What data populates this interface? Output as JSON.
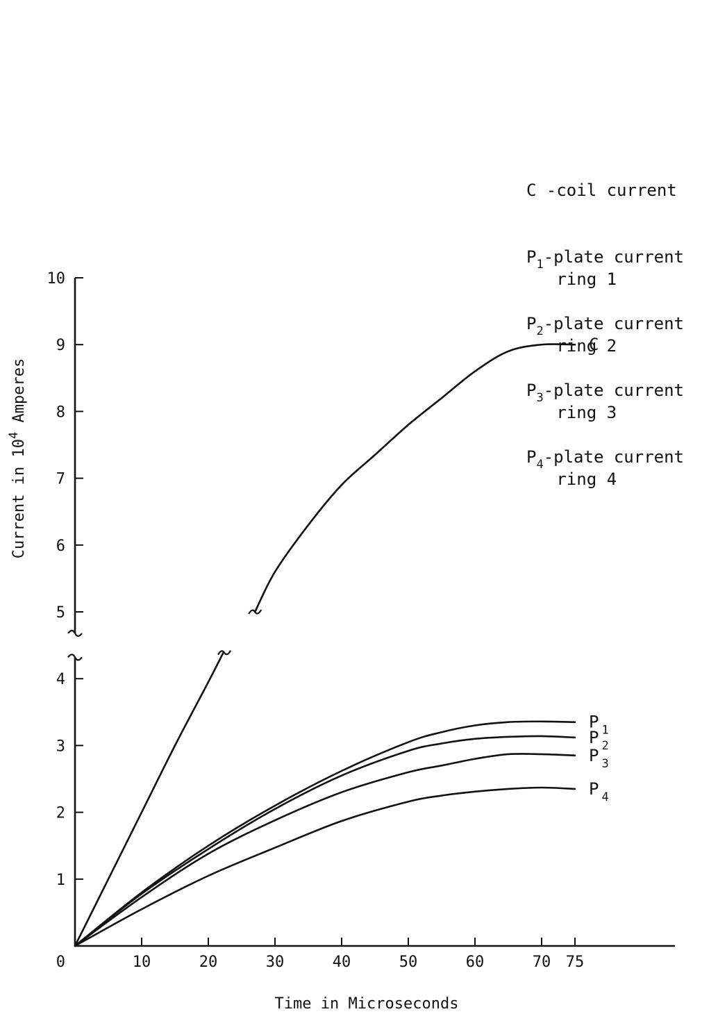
{
  "chart_data": {
    "type": "line",
    "title": "",
    "xlabel": "Time in Microseconds",
    "ylabel": "Current in 10⁴ Amperes",
    "ylabel_parts": {
      "pre": "Current in 10",
      "sup": "4",
      "post": " Amperes"
    },
    "xlim": [
      0,
      90
    ],
    "ylim": [
      0,
      10
    ],
    "y_axis_break": [
      4.3,
      4.7
    ],
    "x_ticks": [
      10,
      20,
      30,
      40,
      50,
      60,
      70,
      75
    ],
    "x_tick_labels": [
      "10",
      "20",
      "30",
      "40",
      "50",
      "60",
      "70",
      "75"
    ],
    "x_origin_label": "0",
    "y_ticks": [
      1,
      2,
      3,
      4,
      5,
      6,
      7,
      8,
      9,
      10
    ],
    "y_tick_labels": [
      "1",
      "2",
      "3",
      "4",
      "5",
      "6",
      "7",
      "8",
      "9",
      "10"
    ],
    "grid": false,
    "legend_placement": "right",
    "series": [
      {
        "name": "C",
        "label_main": "C",
        "label_sub": "",
        "segments": [
          {
            "x": [
              0,
              5,
              10,
              15,
              20,
              22.3
            ],
            "y": [
              0,
              1.0,
              2.0,
              3.0,
              3.95,
              4.4
            ]
          },
          {
            "x": [
              27,
              30,
              35,
              40,
              45,
              50,
              55,
              60,
              65,
              70,
              75
            ],
            "y": [
              5.0,
              5.6,
              6.3,
              6.9,
              7.35,
              7.8,
              8.2,
              8.6,
              8.9,
              9.0,
              9.0
            ]
          }
        ]
      },
      {
        "name": "P1",
        "label_main": "P",
        "label_sub": "1",
        "segments": [
          {
            "x": [
              0,
              10,
              20,
              30,
              40,
              50,
              55,
              60,
              65,
              70,
              75
            ],
            "y": [
              0,
              0.8,
              1.5,
              2.1,
              2.62,
              3.05,
              3.2,
              3.3,
              3.35,
              3.36,
              3.35
            ]
          }
        ]
      },
      {
        "name": "P2",
        "label_main": "P",
        "label_sub": "2",
        "segments": [
          {
            "x": [
              0,
              10,
              20,
              30,
              40,
              50,
              55,
              60,
              65,
              70,
              75
            ],
            "y": [
              0,
              0.78,
              1.45,
              2.05,
              2.55,
              2.92,
              3.03,
              3.1,
              3.13,
              3.14,
              3.12
            ]
          }
        ]
      },
      {
        "name": "P3",
        "label_main": "P",
        "label_sub": "3",
        "segments": [
          {
            "x": [
              0,
              10,
              20,
              30,
              40,
              50,
              55,
              60,
              65,
              70,
              75
            ],
            "y": [
              0,
              0.73,
              1.38,
              1.88,
              2.3,
              2.6,
              2.7,
              2.8,
              2.87,
              2.87,
              2.85
            ]
          }
        ]
      },
      {
        "name": "P4",
        "label_main": "P",
        "label_sub": "4",
        "segments": [
          {
            "x": [
              0,
              10,
              20,
              30,
              40,
              50,
              55,
              60,
              65,
              70,
              75
            ],
            "y": [
              0,
              0.55,
              1.05,
              1.47,
              1.87,
              2.16,
              2.25,
              2.31,
              2.35,
              2.37,
              2.35
            ]
          }
        ]
      }
    ],
    "legend": [
      {
        "lines": [
          {
            "main": "C -coil current",
            "sub": "",
            "rest": ""
          }
        ]
      },
      {
        "lines": [
          {
            "main": "P",
            "sub": "1",
            "rest": "-plate current"
          },
          {
            "main": "   ring 1",
            "sub": "",
            "rest": ""
          }
        ]
      },
      {
        "lines": [
          {
            "main": "P",
            "sub": "2",
            "rest": "-plate current"
          },
          {
            "main": "   ring 2",
            "sub": "",
            "rest": ""
          }
        ]
      },
      {
        "lines": [
          {
            "main": "P",
            "sub": "3",
            "rest": "-plate current"
          },
          {
            "main": "   ring 3",
            "sub": "",
            "rest": ""
          }
        ]
      },
      {
        "lines": [
          {
            "main": "P",
            "sub": "4",
            "rest": "-plate current"
          },
          {
            "main": "   ring 4",
            "sub": "",
            "rest": ""
          }
        ]
      }
    ]
  }
}
